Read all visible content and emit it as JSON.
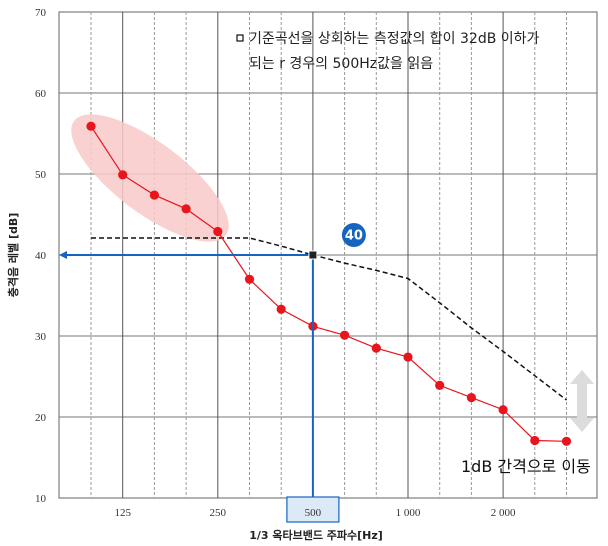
{
  "chart_data": {
    "type": "line",
    "xlabel": "1/3 옥타브밴드 주파수[Hz]",
    "ylabel": "충격음 레벨 [dB]",
    "ylim": [
      10,
      70
    ],
    "y_ticks": [
      10,
      20,
      30,
      40,
      50,
      60,
      70
    ],
    "x_ticks": [
      "125",
      "250",
      "500",
      "1 000",
      "2 000"
    ],
    "bands": [
      "100",
      "125",
      "160",
      "200",
      "250",
      "315",
      "400",
      "500",
      "630",
      "800",
      "1000",
      "1250",
      "1600",
      "2000",
      "2500",
      "3150"
    ],
    "grid": true,
    "series": [
      {
        "values": [
          55.9,
          49.9,
          47.4,
          45.7,
          42.9,
          37.0,
          33.3,
          31.2,
          30.1,
          28.5,
          27.4,
          23.9,
          22.4,
          20.9,
          17.1,
          17.0
        ],
        "color": "#e8161c"
      },
      {
        "values": [
          42.1,
          42.1,
          42.1,
          42.1,
          42.1,
          42.1,
          41.1,
          40.0,
          39.0,
          38.1,
          37.1,
          34.1,
          31.0,
          28.1,
          25.1,
          22.1
        ],
        "color": "#111111"
      }
    ],
    "highlight_band": "500",
    "read_value": 40,
    "read_value_label": "40",
    "annotation_lines": [
      "기준곡선을 상회하는 측정값의 합이 32dB 이하가",
      "되는 r 경우의 500Hz값을 읽음"
    ],
    "shift_label": "1dB 간격으로 이동"
  },
  "colors": {
    "accent_blue": "#1565c0",
    "highlight_box": "#dce9f7",
    "ellipse": "#f9c9c9",
    "arrow_gray": "#dcdcdc"
  }
}
